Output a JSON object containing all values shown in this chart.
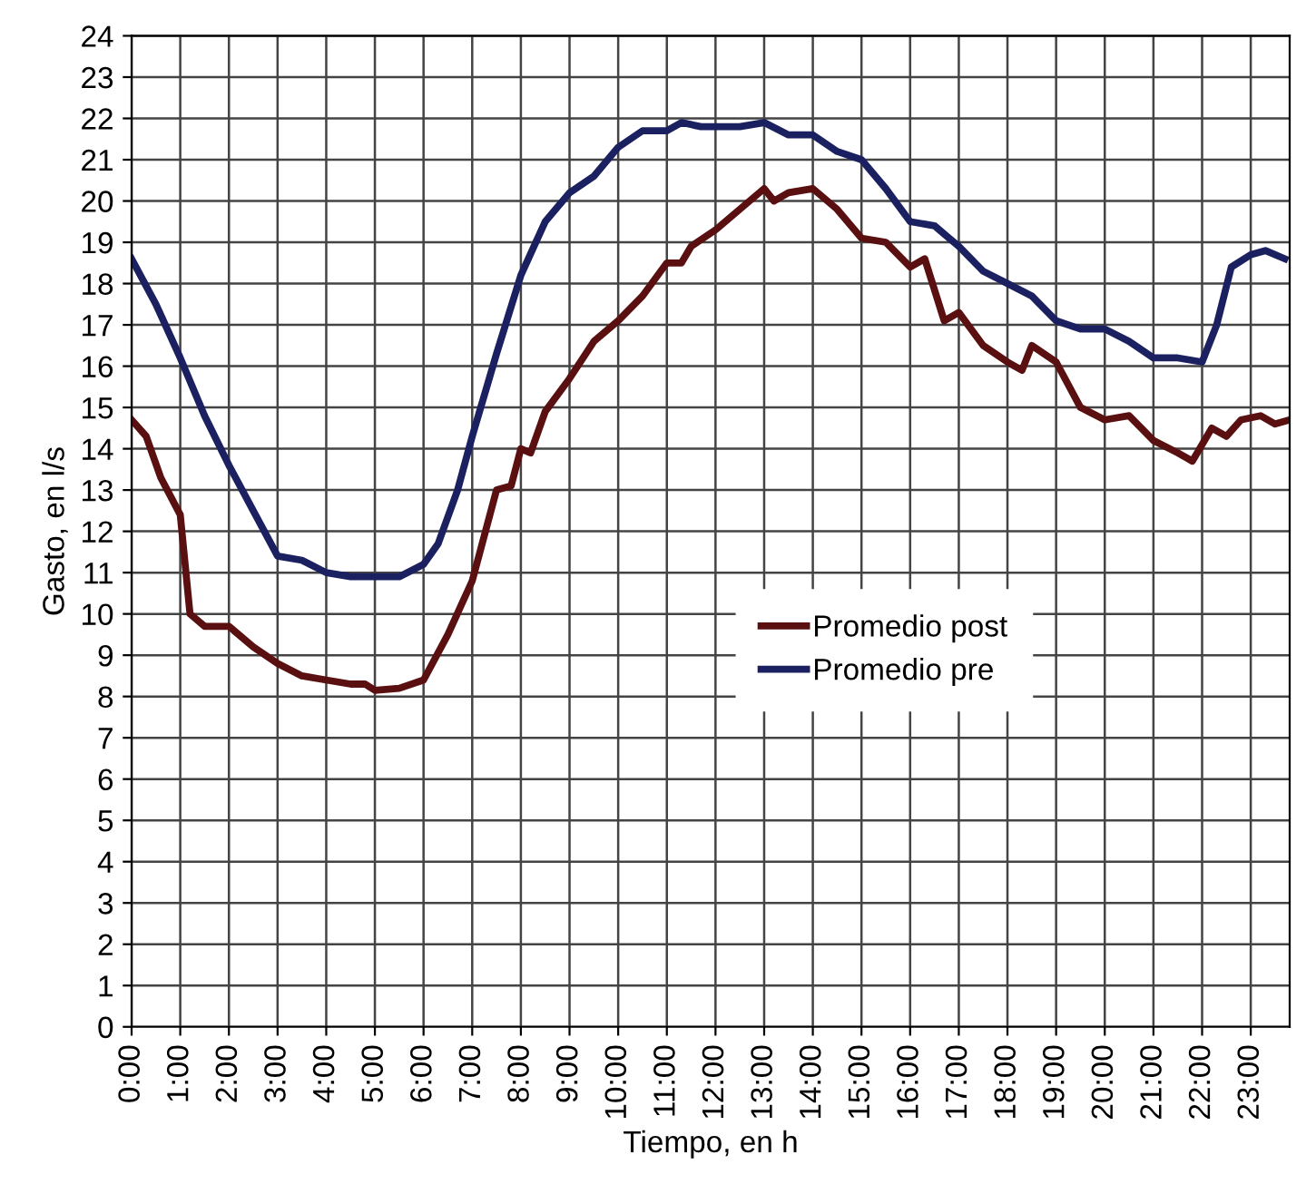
{
  "chart_data": {
    "type": "line",
    "xlabel": "Tiempo, en h",
    "ylabel": "Gasto, en l/s",
    "xlim": [
      0,
      23.8
    ],
    "ylim": [
      0,
      24
    ],
    "xticks": [
      {
        "value": 0,
        "label": "0:00"
      },
      {
        "value": 1,
        "label": "1:00"
      },
      {
        "value": 2,
        "label": "2:00"
      },
      {
        "value": 3,
        "label": "3:00"
      },
      {
        "value": 4,
        "label": "4:00"
      },
      {
        "value": 5,
        "label": "5:00"
      },
      {
        "value": 6,
        "label": "6:00"
      },
      {
        "value": 7,
        "label": "7:00"
      },
      {
        "value": 8,
        "label": "8:00"
      },
      {
        "value": 9,
        "label": "9:00"
      },
      {
        "value": 10,
        "label": "10:00"
      },
      {
        "value": 11,
        "label": "11:00"
      },
      {
        "value": 12,
        "label": "12:00"
      },
      {
        "value": 13,
        "label": "13:00"
      },
      {
        "value": 14,
        "label": "14:00"
      },
      {
        "value": 15,
        "label": "15:00"
      },
      {
        "value": 16,
        "label": "16:00"
      },
      {
        "value": 17,
        "label": "17:00"
      },
      {
        "value": 18,
        "label": "18:00"
      },
      {
        "value": 19,
        "label": "19:00"
      },
      {
        "value": 20,
        "label": "20:00"
      },
      {
        "value": 21,
        "label": "21:00"
      },
      {
        "value": 22,
        "label": "22:00"
      },
      {
        "value": 23,
        "label": "23:00"
      }
    ],
    "yticks": [
      0,
      1,
      2,
      3,
      4,
      5,
      6,
      7,
      8,
      9,
      10,
      11,
      12,
      13,
      14,
      15,
      16,
      17,
      18,
      19,
      20,
      21,
      22,
      23,
      24
    ],
    "grid": true,
    "legend": "center",
    "marker": "none",
    "line_style": "solid",
    "series": [
      {
        "name": "Promedio post",
        "color": "#5a1010",
        "x": [
          0,
          0.3,
          0.6,
          1,
          1.2,
          1.5,
          2,
          2.5,
          3,
          3.5,
          4,
          4.5,
          4.8,
          5,
          5.5,
          6,
          6.5,
          7,
          7.5,
          7.8,
          8,
          8.2,
          8.5,
          9,
          9.5,
          10,
          10.5,
          11,
          11.3,
          11.5,
          12,
          12.5,
          13,
          13.2,
          13.5,
          14,
          14.5,
          15,
          15.5,
          16,
          16.3,
          16.7,
          17,
          17.5,
          18,
          18.3,
          18.5,
          19,
          19.5,
          20,
          20.5,
          21,
          21.5,
          21.8,
          22.2,
          22.5,
          22.8,
          23.2,
          23.5,
          23.8
        ],
        "values": [
          14.7,
          14.3,
          13.3,
          12.4,
          10.0,
          9.7,
          9.7,
          9.2,
          8.8,
          8.5,
          8.4,
          8.3,
          8.3,
          8.15,
          8.2,
          8.4,
          9.5,
          10.8,
          13.0,
          13.1,
          14.0,
          13.9,
          14.9,
          15.7,
          16.6,
          17.1,
          17.7,
          18.5,
          18.5,
          18.9,
          19.3,
          19.8,
          20.3,
          20.0,
          20.2,
          20.3,
          19.8,
          19.1,
          19.0,
          18.4,
          18.6,
          17.1,
          17.3,
          16.5,
          16.1,
          15.9,
          16.5,
          16.1,
          15.0,
          14.7,
          14.8,
          14.2,
          13.9,
          13.7,
          14.5,
          14.3,
          14.7,
          14.8,
          14.6,
          14.7
        ]
      },
      {
        "name": "Promedio pre",
        "color": "#1a2060",
        "x": [
          0,
          0.5,
          1,
          1.5,
          2,
          2.5,
          3,
          3.5,
          4,
          4.5,
          5,
          5.5,
          6,
          6.3,
          6.7,
          7,
          7.5,
          8,
          8.5,
          9,
          9.5,
          10,
          10.5,
          11,
          11.3,
          11.7,
          12,
          12.5,
          13,
          13.5,
          14,
          14.5,
          15,
          15.5,
          16,
          16.5,
          17,
          17.5,
          18,
          18.5,
          19,
          19.5,
          20,
          20.5,
          21,
          21.5,
          22,
          22.3,
          22.6,
          23,
          23.3,
          23.7
        ],
        "values": [
          18.6,
          17.5,
          16.2,
          14.8,
          13.6,
          12.5,
          11.4,
          11.3,
          11.0,
          10.9,
          10.9,
          10.9,
          11.2,
          11.7,
          13.0,
          14.3,
          16.3,
          18.2,
          19.5,
          20.2,
          20.6,
          21.3,
          21.7,
          21.7,
          21.9,
          21.8,
          21.8,
          21.8,
          21.9,
          21.6,
          21.6,
          21.2,
          21.0,
          20.3,
          19.5,
          19.4,
          18.9,
          18.3,
          18.0,
          17.7,
          17.1,
          16.9,
          16.9,
          16.6,
          16.2,
          16.2,
          16.1,
          17.0,
          18.4,
          18.7,
          18.8,
          18.6
        ]
      }
    ]
  }
}
